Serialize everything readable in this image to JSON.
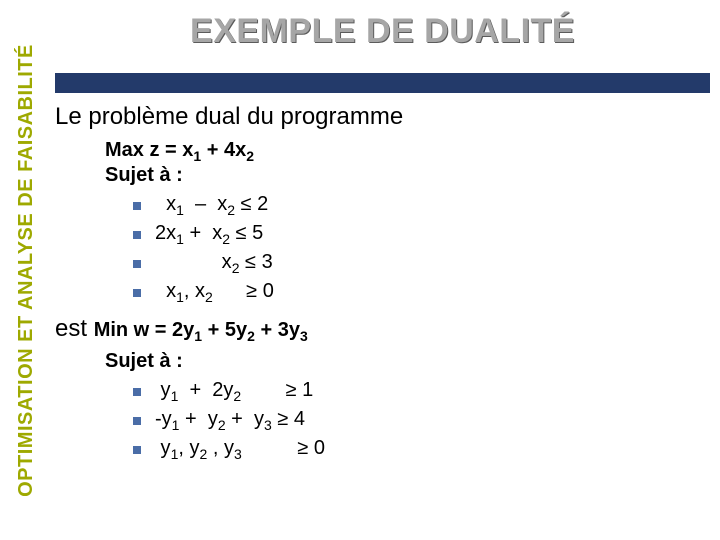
{
  "colors": {
    "accent": "#9ea900",
    "title": "#a6a6a6",
    "title_shadow": "#5b5b5b",
    "bar": "#233a6a",
    "bullet": "#4a6da7",
    "text": "#000000",
    "background": "#ffffff"
  },
  "typography": {
    "title_fontsize": 34,
    "body_fontsize": 24,
    "math_fontsize": 20,
    "sidebar_fontsize": 20,
    "title_weight": 900,
    "bold_weight": 700
  },
  "sidebar": {
    "label": "OPTIMISATION ET ANALYSE DE FAISABILITÉ"
  },
  "title": "EXEMPLE DE DUALITÉ",
  "intro_line": "Le problème dual du programme",
  "primal": {
    "objective_pre": "Max z = x",
    "objective_mid": " + 4x",
    "subject": "Sujet à :",
    "constraints": [
      {
        "text_html": "&nbsp;&nbsp;x<sub>1</sub>  –  x<sub>2</sub> ≤ 2"
      },
      {
        "text_html": "2x<sub>1</sub> +  x<sub>2</sub> ≤ 5"
      },
      {
        "text_html": "&nbsp;&nbsp;&nbsp;&nbsp;&nbsp;&nbsp;&nbsp;&nbsp;&nbsp;&nbsp;&nbsp;&nbsp;x<sub>2</sub> ≤ 3"
      },
      {
        "text_html": "&nbsp;&nbsp;x<sub>1</sub>, x<sub>2</sub>&nbsp;&nbsp;&nbsp;&nbsp;&nbsp;&nbsp;≥ 0"
      }
    ]
  },
  "est_prefix": "est ",
  "dual": {
    "objective_html": "Min w = 2y<sub>1</sub> + 5y<sub>2</sub> + 3y<sub>3</sub>",
    "subject": "Sujet à :",
    "constraints": [
      {
        "text_html": "&nbsp;y<sub>1</sub>&nbsp;&nbsp;+&nbsp;&nbsp;2y<sub>2</sub>&nbsp;&nbsp;&nbsp;&nbsp;&nbsp;&nbsp;&nbsp;&nbsp;≥ 1"
      },
      {
        "text_html": "-y<sub>1</sub> +&nbsp;&nbsp;y<sub>2</sub> +&nbsp;&nbsp;y<sub>3</sub> ≥ 4"
      },
      {
        "text_html": "&nbsp;y<sub>1</sub>, y<sub>2</sub> , y<sub>3</sub>&nbsp;&nbsp;&nbsp;&nbsp;&nbsp;&nbsp;&nbsp;&nbsp;&nbsp;&nbsp;≥ 0"
      }
    ]
  }
}
